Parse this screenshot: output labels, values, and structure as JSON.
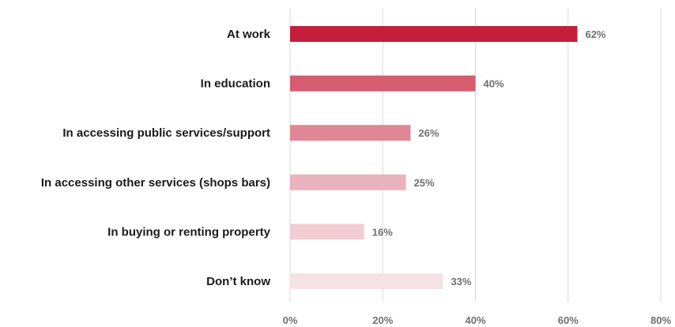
{
  "chart_data": {
    "type": "bar",
    "orientation": "horizontal",
    "categories": [
      "At work",
      "In education",
      "In accessing public services/support",
      "In accessing other services (shops bars)",
      "In buying or renting property",
      "Don’t know"
    ],
    "values": [
      62,
      40,
      26,
      25,
      16,
      33
    ],
    "value_labels": [
      "62%",
      "40%",
      "26%",
      "25%",
      "16%",
      "33%"
    ],
    "bar_colors": [
      "#c41e3a",
      "#d65c6f",
      "#e08796",
      "#ebb3bd",
      "#f2cdd4",
      "#f5e2e6"
    ],
    "x_ticks": [
      0,
      20,
      40,
      60,
      80
    ],
    "x_tick_labels": [
      "0%",
      "20%",
      "40%",
      "60%",
      "80%"
    ],
    "xlim": [
      0,
      80
    ],
    "grid": true,
    "legend": "none",
    "title": "",
    "xlabel": "",
    "ylabel": ""
  }
}
